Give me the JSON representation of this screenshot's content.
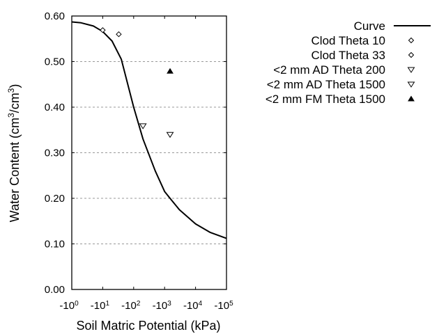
{
  "chart_data": {
    "type": "scatter",
    "title": "",
    "xlabel": "Soil Matric Potential (kPa)",
    "ylabel_main": "Water Content (cm",
    "ylabel": "Water Content (cm3/cm3)",
    "xscale": "log",
    "xlim_log10": [
      0,
      5
    ],
    "ylim": [
      0.0,
      0.6
    ],
    "grid": "horizontal dotted",
    "legend_position": "right, outside plot",
    "x_ticks": [
      {
        "base": "-10",
        "exp": "0"
      },
      {
        "base": "-10",
        "exp": "1"
      },
      {
        "base": "-10",
        "exp": "2"
      },
      {
        "base": "-10",
        "exp": "3"
      },
      {
        "base": "-10",
        "exp": "4"
      },
      {
        "base": "-10",
        "exp": "5"
      }
    ],
    "y_ticks": [
      "0.00",
      "0.10",
      "0.20",
      "0.30",
      "0.40",
      "0.50",
      "0.60"
    ],
    "series": [
      {
        "name": "Curve",
        "kind": "line",
        "x_kpa": [
          1,
          2,
          5,
          10,
          20,
          40,
          100,
          200,
          500,
          1000,
          1500,
          3000,
          10000,
          30000,
          100000
        ],
        "y": [
          0.587,
          0.585,
          0.578,
          0.566,
          0.545,
          0.505,
          0.4,
          0.33,
          0.26,
          0.215,
          0.2,
          0.175,
          0.144,
          0.125,
          0.112
        ]
      },
      {
        "name": "Clod Theta 10",
        "kind": "marker",
        "marker": "diamond-open",
        "x_kpa": [
          10
        ],
        "y": [
          0.569
        ]
      },
      {
        "name": "Clod Theta 33",
        "kind": "marker",
        "marker": "diamond-open",
        "x_kpa": [
          33
        ],
        "y": [
          0.56
        ]
      },
      {
        "name": "<2 mm AD Theta 200",
        "kind": "marker",
        "marker": "triangle-down-open",
        "x_kpa": [
          200
        ],
        "y": [
          0.359
        ]
      },
      {
        "name": "<2 mm AD Theta 1500",
        "kind": "marker",
        "marker": "triangle-down-open",
        "x_kpa": [
          1500
        ],
        "y": [
          0.34
        ]
      },
      {
        "name": "<2 mm FM Theta 1500",
        "kind": "marker",
        "marker": "triangle-up-filled",
        "x_kpa": [
          1500
        ],
        "y": [
          0.479
        ]
      }
    ]
  },
  "legend": {
    "items": [
      {
        "label": "Curve",
        "symbol": "line"
      },
      {
        "label": "Clod Theta 10",
        "symbol": "diamond-open"
      },
      {
        "label": "Clod Theta 33",
        "symbol": "diamond-open"
      },
      {
        "label": "<2 mm AD Theta 200",
        "symbol": "triangle-down-open"
      },
      {
        "label": "<2 mm AD Theta 1500",
        "symbol": "triangle-down-open"
      },
      {
        "label": "<2 mm FM Theta 1500",
        "symbol": "triangle-up-filled"
      }
    ]
  },
  "colors": {
    "line": "#000000",
    "grid": "#999999",
    "frame": "#000000"
  }
}
